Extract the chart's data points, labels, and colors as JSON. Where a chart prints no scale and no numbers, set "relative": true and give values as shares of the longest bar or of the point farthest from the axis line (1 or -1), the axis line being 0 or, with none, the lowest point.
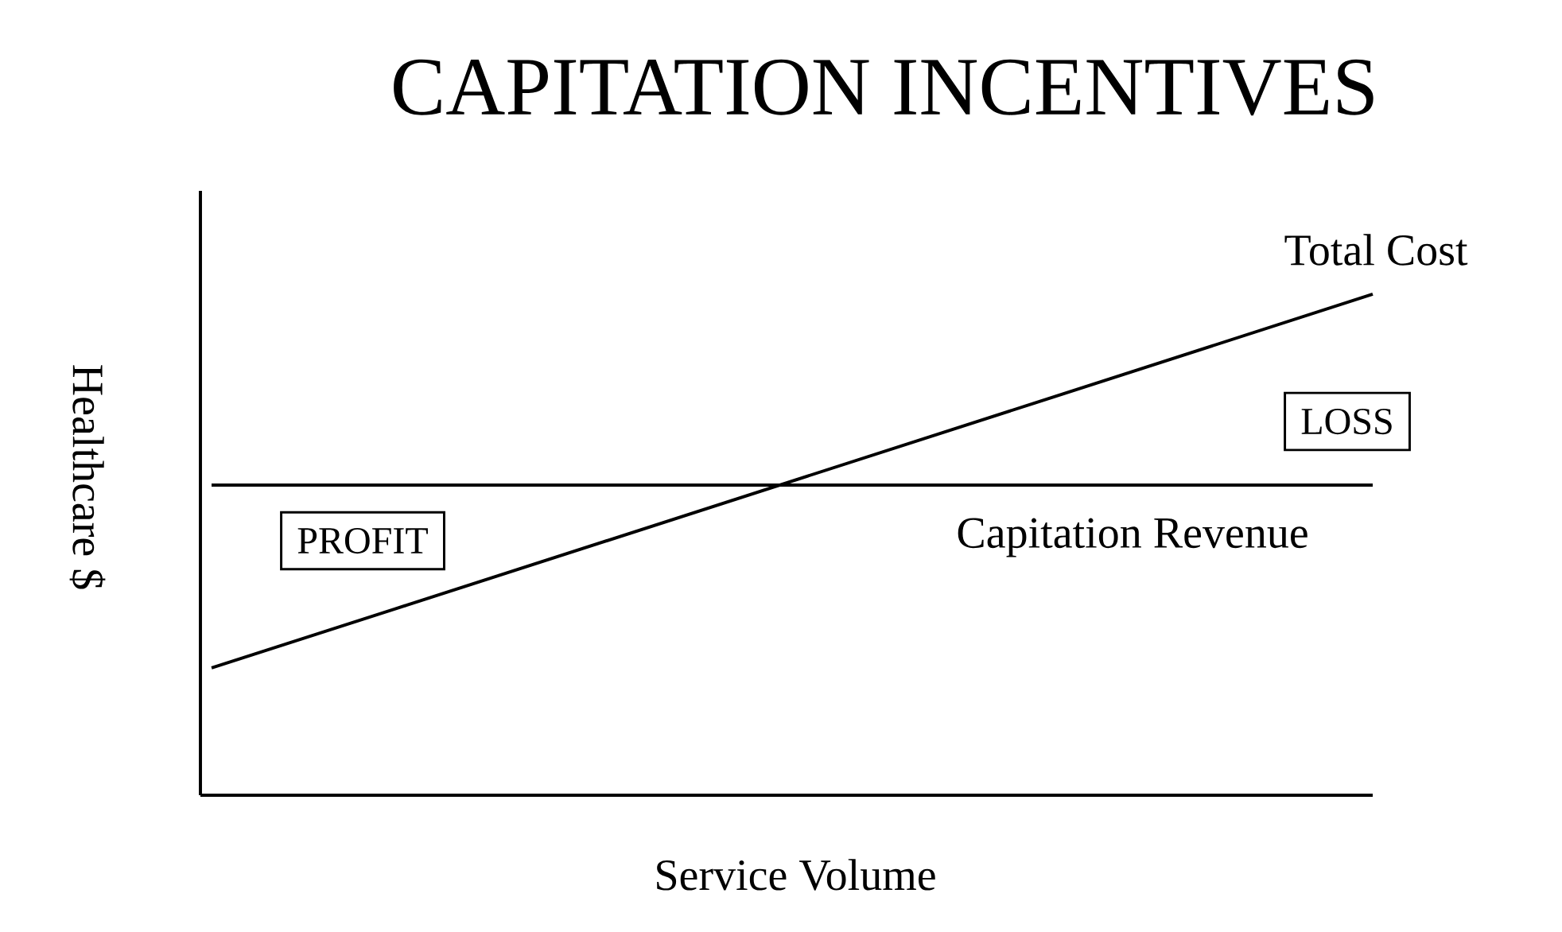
{
  "chart_data": {
    "type": "line",
    "title": "CAPITATION INCENTIVES",
    "xlabel": "Service Volume",
    "ylabel": "Healthcare $",
    "relative": true,
    "categories": [
      null,
      null
    ],
    "series": [
      {
        "name": "Total Cost",
        "color": "#000000",
        "values": [
          0.254,
          1
        ]
      },
      {
        "name": "Capitation Revenue",
        "color": "#000000",
        "values": [
          0.619,
          0.619
        ]
      }
    ],
    "annotations": [
      "PROFIT",
      "LOSS"
    ],
    "marker": "none",
    "line_style": "solid"
  }
}
